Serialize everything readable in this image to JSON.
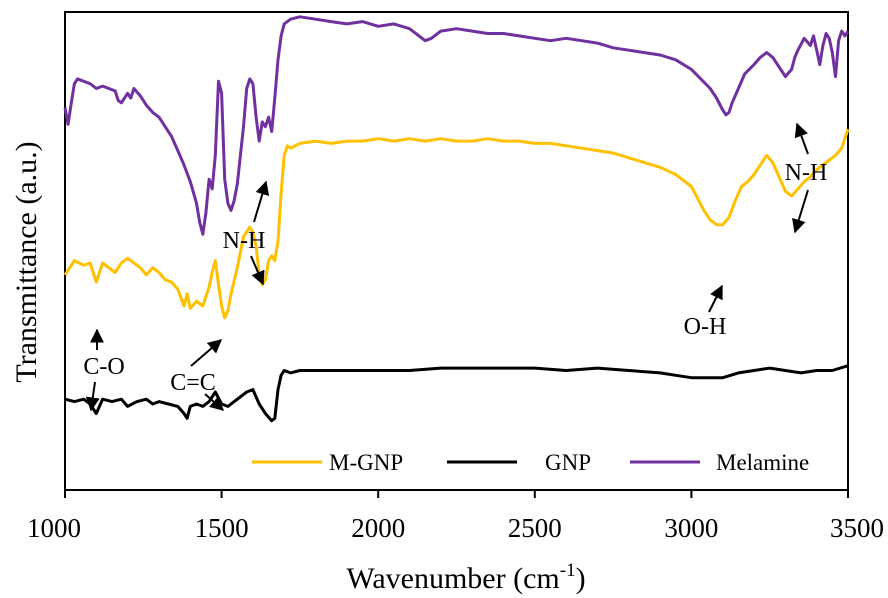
{
  "chart_data": {
    "type": "line",
    "title": "",
    "xlabel": "Wavenumber (cm",
    "xlabel_sup": "-1",
    "xlabel_close": ")",
    "ylabel": "Transmittance (a.u.)",
    "xlim": [
      1000,
      3500
    ],
    "ylim": [
      0,
      100
    ],
    "xticks": [
      1000,
      1500,
      2000,
      2500,
      3000,
      3500
    ],
    "xtick_labels": [
      "1000",
      "1500",
      "2000",
      "2500",
      "3000",
      "3500"
    ],
    "grid": false,
    "legend_position": "bottom-right",
    "series": [
      {
        "name": "M-GNP",
        "color": "#FFC000",
        "x": [
          1000,
          1030,
          1060,
          1080,
          1100,
          1120,
          1140,
          1160,
          1180,
          1200,
          1220,
          1240,
          1260,
          1280,
          1300,
          1320,
          1340,
          1360,
          1380,
          1390,
          1400,
          1420,
          1440,
          1460,
          1470,
          1480,
          1490,
          1500,
          1510,
          1520,
          1530,
          1550,
          1570,
          1590,
          1600,
          1610,
          1620,
          1630,
          1640,
          1650,
          1660,
          1670,
          1680,
          1690,
          1700,
          1710,
          1720,
          1750,
          1800,
          1850,
          1900,
          1950,
          2000,
          2050,
          2100,
          2150,
          2200,
          2250,
          2300,
          2350,
          2400,
          2450,
          2500,
          2550,
          2600,
          2650,
          2700,
          2750,
          2800,
          2850,
          2900,
          2950,
          3000,
          3020,
          3040,
          3060,
          3080,
          3100,
          3120,
          3140,
          3160,
          3180,
          3200,
          3220,
          3240,
          3260,
          3280,
          3300,
          3320,
          3340,
          3360,
          3380,
          3400,
          3420,
          3440,
          3460,
          3480,
          3500
        ],
        "y": [
          45.0,
          48.0,
          47.0,
          47.5,
          43.5,
          47.5,
          46.5,
          45.5,
          47.5,
          48.5,
          47.5,
          46.5,
          45.0,
          46.5,
          45.5,
          44.0,
          43.5,
          42.0,
          38.5,
          41.0,
          38.0,
          39.5,
          38.5,
          42.5,
          45.5,
          48.0,
          43.0,
          38.5,
          36.0,
          37.5,
          41.0,
          46.5,
          53.0,
          55.0,
          54.0,
          51.0,
          45.0,
          43.0,
          44.0,
          48.0,
          49.0,
          48.0,
          52.0,
          62.0,
          70.0,
          72.0,
          71.5,
          72.5,
          73.0,
          72.5,
          73.0,
          73.0,
          73.5,
          73.0,
          73.5,
          73.0,
          73.5,
          73.0,
          73.0,
          73.5,
          73.0,
          73.0,
          72.5,
          72.5,
          72.0,
          71.5,
          71.0,
          70.5,
          69.5,
          68.5,
          67.5,
          66.0,
          63.5,
          61.0,
          58.5,
          56.5,
          55.5,
          55.5,
          57.0,
          60.5,
          63.5,
          64.5,
          66.0,
          68.0,
          70.0,
          68.5,
          65.5,
          62.5,
          61.5,
          63.0,
          64.5,
          65.5,
          67.0,
          68.0,
          69.0,
          70.0,
          71.5,
          75.5
        ]
      },
      {
        "name": "GNP",
        "color": "#000000",
        "x": [
          1000,
          1030,
          1060,
          1080,
          1100,
          1120,
          1150,
          1180,
          1200,
          1230,
          1260,
          1280,
          1300,
          1330,
          1360,
          1380,
          1390,
          1400,
          1420,
          1440,
          1460,
          1480,
          1500,
          1520,
          1550,
          1580,
          1600,
          1620,
          1640,
          1660,
          1670,
          1680,
          1690,
          1700,
          1720,
          1750,
          1800,
          1900,
          2000,
          2100,
          2200,
          2300,
          2400,
          2500,
          2600,
          2700,
          2800,
          2900,
          2950,
          3000,
          3050,
          3100,
          3150,
          3200,
          3250,
          3300,
          3350,
          3400,
          3450,
          3500
        ],
        "y": [
          19.0,
          18.5,
          19.0,
          18.0,
          16.0,
          19.0,
          18.5,
          19.0,
          17.5,
          18.5,
          19.0,
          18.0,
          18.5,
          18.0,
          17.5,
          16.0,
          15.0,
          17.5,
          18.0,
          17.5,
          18.5,
          20.5,
          18.0,
          17.5,
          19.0,
          20.5,
          21.0,
          18.0,
          16.0,
          14.5,
          15.0,
          21.0,
          24.0,
          25.0,
          24.5,
          25.0,
          25.0,
          25.0,
          25.0,
          25.0,
          25.5,
          25.5,
          25.5,
          25.5,
          25.0,
          25.5,
          25.0,
          24.5,
          24.0,
          23.5,
          23.5,
          23.5,
          24.5,
          25.0,
          25.5,
          25.0,
          24.5,
          25.0,
          25.0,
          26.0
        ]
      },
      {
        "name": "Melamine",
        "color": "#7030A0",
        "x": [
          1000,
          1010,
          1020,
          1030,
          1040,
          1060,
          1080,
          1100,
          1120,
          1140,
          1160,
          1170,
          1180,
          1200,
          1210,
          1220,
          1240,
          1260,
          1280,
          1300,
          1320,
          1340,
          1360,
          1380,
          1400,
          1420,
          1430,
          1440,
          1450,
          1460,
          1470,
          1480,
          1490,
          1500,
          1510,
          1520,
          1530,
          1540,
          1550,
          1560,
          1570,
          1580,
          1590,
          1600,
          1610,
          1620,
          1630,
          1640,
          1650,
          1660,
          1670,
          1680,
          1690,
          1700,
          1720,
          1750,
          1800,
          1850,
          1900,
          1950,
          2000,
          2050,
          2100,
          2150,
          2170,
          2200,
          2250,
          2300,
          2350,
          2400,
          2450,
          2500,
          2550,
          2600,
          2650,
          2700,
          2750,
          2800,
          2850,
          2900,
          2950,
          3000,
          3030,
          3060,
          3080,
          3100,
          3110,
          3120,
          3130,
          3150,
          3170,
          3200,
          3220,
          3240,
          3260,
          3280,
          3300,
          3320,
          3330,
          3340,
          3360,
          3380,
          3390,
          3400,
          3410,
          3420,
          3430,
          3440,
          3450,
          3460,
          3470,
          3480,
          3490,
          3500
        ],
        "y": [
          80.0,
          76.5,
          81.0,
          85.0,
          86.0,
          85.5,
          85.0,
          84.0,
          84.5,
          84.0,
          83.5,
          81.5,
          81.0,
          83.0,
          82.0,
          84.0,
          82.5,
          80.5,
          79.0,
          78.0,
          76.0,
          74.0,
          71.0,
          68.0,
          64.5,
          60.0,
          56.0,
          53.5,
          58.0,
          65.0,
          63.0,
          70.0,
          85.5,
          83.0,
          65.0,
          60.0,
          58.5,
          60.5,
          64.0,
          70.0,
          76.0,
          84.0,
          86.0,
          85.0,
          78.0,
          73.0,
          77.0,
          76.0,
          78.0,
          75.0,
          82.0,
          90.0,
          95.0,
          97.5,
          98.5,
          99.0,
          98.5,
          98.0,
          97.5,
          98.0,
          97.0,
          97.5,
          96.5,
          94.0,
          94.5,
          96.0,
          96.5,
          96.0,
          95.5,
          95.5,
          95.0,
          94.5,
          94.0,
          94.5,
          94.0,
          93.5,
          92.5,
          92.0,
          91.5,
          91.0,
          90.0,
          88.0,
          86.0,
          84.0,
          82.0,
          79.5,
          78.5,
          79.0,
          81.0,
          84.0,
          87.0,
          89.0,
          90.5,
          91.5,
          90.5,
          88.5,
          86.5,
          88.0,
          90.5,
          92.0,
          94.5,
          93.0,
          95.0,
          92.0,
          89.0,
          93.0,
          95.5,
          94.5,
          91.5,
          86.5,
          94.0,
          96.0,
          95.0,
          96.0
        ]
      }
    ],
    "annotations": [
      {
        "text": "N-H",
        "arrows": 2
      },
      {
        "text": "C-O",
        "arrows": 2
      },
      {
        "text": "C=C",
        "arrows": 2
      },
      {
        "text": "O-H",
        "arrows": 1
      },
      {
        "text": "N-H",
        "arrows": 2
      }
    ]
  }
}
